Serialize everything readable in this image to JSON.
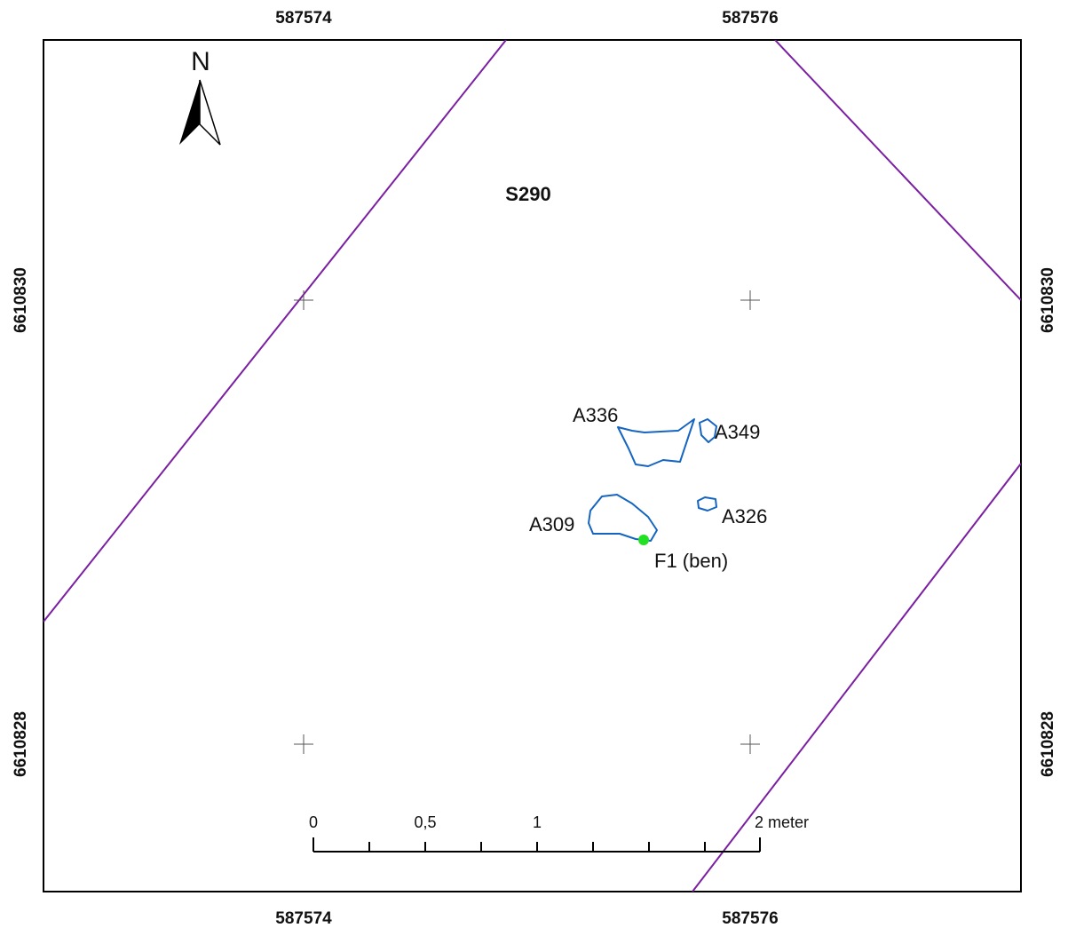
{
  "coords": {
    "top_left": "587574",
    "top_right": "587576",
    "bottom_left": "587574",
    "bottom_right": "587576",
    "left_upper": "6610830",
    "left_lower": "6610828",
    "right_upper": "6610830",
    "right_lower": "6610828"
  },
  "north_label": "N",
  "section_label": "S290",
  "features": {
    "a336": "A336",
    "a349": "A349",
    "a309": "A309",
    "a326": "A326",
    "f1": "F1 (ben)"
  },
  "scale": {
    "ticks": [
      "0",
      "0,5",
      "1",
      "2 meter"
    ]
  },
  "colors": {
    "boundary": "#7b1fa2",
    "feature_outline": "#1565c0",
    "find_point": "#22e022",
    "frame": "#000000",
    "grid_cross": "#555555"
  }
}
